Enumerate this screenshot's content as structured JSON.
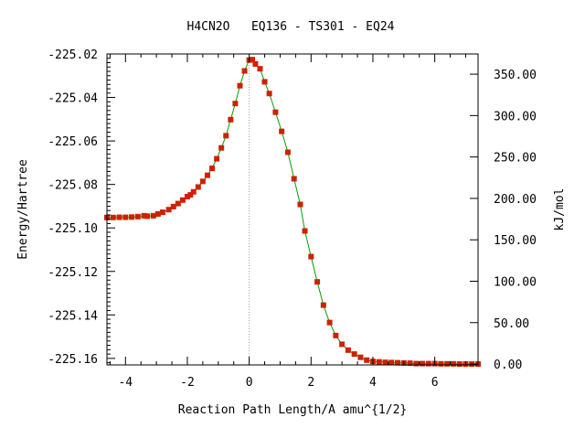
{
  "chart_data": {
    "type": "line",
    "title": "H4CN2O   EQ136 - TS301 - EQ24",
    "xlabel": "Reaction Path Length/A amu^{1/2}",
    "ylabel": "Energy/Hartree",
    "y2label": "kJ/mol",
    "xlim": [
      -4.6,
      7.4
    ],
    "ylim": [
      -225.163,
      -225.02
    ],
    "xticks": [
      -4,
      -2,
      0,
      2,
      4,
      6
    ],
    "xtick_labels": [
      "-4",
      "-2",
      "0",
      "2",
      "4",
      "6"
    ],
    "yticks": [
      -225.02,
      -225.04,
      -225.06,
      -225.08,
      -225.1,
      -225.12,
      -225.14,
      -225.16
    ],
    "ytick_labels": [
      "-225.02",
      "-225.04",
      "-225.06",
      "-225.08",
      "-225.10",
      "-225.12",
      "-225.14",
      "-225.16"
    ],
    "y2ticks": [
      0,
      50,
      100,
      150,
      200,
      250,
      300,
      350
    ],
    "y2tick_labels": [
      "0.00",
      "50.00",
      "100.00",
      "150.00",
      "200.00",
      "250.00",
      "300.00",
      "350.00"
    ],
    "ts_x": 0,
    "line_color": "#00a000",
    "marker_color": "#cc2200",
    "series": [
      {
        "x": [
          -4.6,
          -4.4,
          -4.2,
          -4.0,
          -3.8,
          -3.6,
          -3.4,
          -3.3,
          -3.1,
          -2.95,
          -2.8,
          -2.6,
          -2.45,
          -2.3,
          -2.15,
          -2.0,
          -1.9,
          -1.8,
          -1.65,
          -1.5,
          -1.35,
          -1.2,
          -1.05,
          -0.9,
          -0.75,
          -0.6,
          -0.45,
          -0.3,
          -0.15,
          0.0,
          0.1,
          0.2,
          0.35,
          0.5,
          0.65,
          0.85,
          1.05,
          1.25,
          1.45,
          1.65,
          1.8,
          2.0,
          2.2,
          2.4,
          2.6,
          2.8,
          3.0,
          3.2,
          3.4,
          3.6,
          3.8,
          4.0,
          4.2,
          4.4,
          4.6,
          4.8,
          5.0,
          5.2,
          5.4,
          5.6,
          5.8,
          6.0,
          6.2,
          6.4,
          6.6,
          6.8,
          7.0,
          7.2,
          7.4
        ],
        "y": [
          -225.0952,
          -225.0952,
          -225.0951,
          -225.0951,
          -225.095,
          -225.0948,
          -225.0944,
          -225.0946,
          -225.0944,
          -225.0936,
          -225.0928,
          -225.0916,
          -225.0902,
          -225.0888,
          -225.0872,
          -225.0856,
          -225.0848,
          -225.0834,
          -225.0812,
          -225.0786,
          -225.0758,
          -225.0726,
          -225.0682,
          -225.0632,
          -225.0576,
          -225.0502,
          -225.0428,
          -225.0346,
          -225.0278,
          -225.0228,
          -225.0226,
          -225.0246,
          -225.0268,
          -225.0328,
          -225.0382,
          -225.0468,
          -225.0556,
          -225.0652,
          -225.0774,
          -225.0892,
          -225.1014,
          -225.1132,
          -225.1248,
          -225.1355,
          -225.1435,
          -225.1495,
          -225.1535,
          -225.1562,
          -225.158,
          -225.1595,
          -225.1608,
          -225.1614,
          -225.1616,
          -225.1618,
          -225.1619,
          -225.162,
          -225.1621,
          -225.1622,
          -225.1624,
          -225.1624,
          -225.1624,
          -225.1624,
          -225.1625,
          -225.1625,
          -225.1625,
          -225.1626,
          -225.1626,
          -225.1626,
          -225.1626
        ]
      }
    ]
  }
}
